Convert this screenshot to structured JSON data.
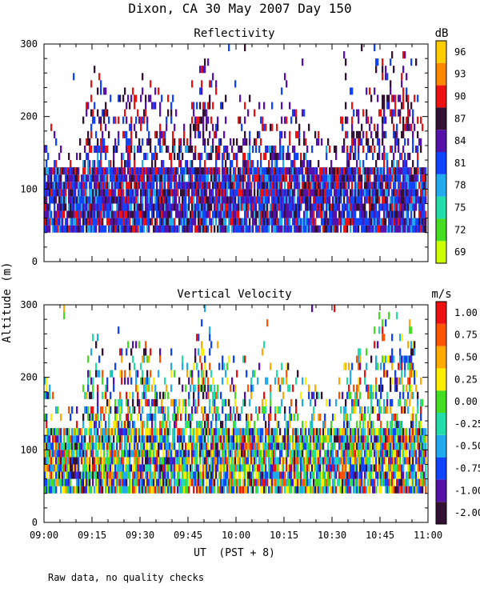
{
  "title": "Dixon, CA 30 May 2007  Day 150",
  "footer_note": "Raw data, no quality checks",
  "colors": {
    "reflectivity_scale": [
      "#ccff00",
      "#44dd22",
      "#22ddaa",
      "#22aaee",
      "#1144ff",
      "#5511aa",
      "#331133",
      "#ee1111",
      "#ff8800",
      "#ffcc00"
    ],
    "velocity_scale": [
      "#331133",
      "#5511aa",
      "#1144ff",
      "#22aaee",
      "#22ddaa",
      "#44dd22",
      "#ffee00",
      "#ffaa00",
      "#ff5500",
      "#ee1111"
    ]
  },
  "chart_data": [
    {
      "type": "heatmap",
      "title": "Reflectivity",
      "xlabel": "UT  (PST + 8)",
      "ylabel": "Altitude (m)",
      "xlim": [
        0,
        120
      ],
      "ylim": [
        0,
        300
      ],
      "x_ticks": [
        "09:00",
        "09:15",
        "09:30",
        "09:45",
        "10:00",
        "10:15",
        "10:30",
        "10:45",
        "11:00"
      ],
      "y_ticks": [
        0,
        100,
        200,
        300
      ],
      "colorbar": {
        "unit": "dB",
        "labels": [
          "69",
          "72",
          "75",
          "78",
          "81",
          "84",
          "87",
          "90",
          "93",
          "96"
        ]
      },
      "data_extent": {
        "min_altitude": 40,
        "max_altitude": 300
      },
      "echo_top_profile": {
        "minutes": [
          0,
          5,
          10,
          15,
          20,
          25,
          30,
          35,
          40,
          45,
          50,
          55,
          60,
          65,
          70,
          75,
          80,
          85,
          90,
          95,
          100,
          105,
          110,
          115,
          120
        ],
        "top_altitude_m": [
          210,
          160,
          160,
          280,
          220,
          240,
          260,
          240,
          230,
          220,
          290,
          230,
          230,
          220,
          210,
          220,
          210,
          180,
          160,
          240,
          230,
          290,
          290,
          280,
          120
        ]
      }
    },
    {
      "type": "heatmap",
      "title": "Vertical Velocity",
      "xlabel": "UT  (PST + 8)",
      "ylabel": "Altitude (m)",
      "xlim": [
        0,
        120
      ],
      "ylim": [
        0,
        300
      ],
      "x_ticks": [
        "09:00",
        "09:15",
        "09:30",
        "09:45",
        "10:00",
        "10:15",
        "10:30",
        "10:45",
        "11:00"
      ],
      "y_ticks": [
        0,
        100,
        200,
        300
      ],
      "colorbar": {
        "unit": "m/s",
        "labels": [
          "-2.00",
          "-1.00",
          "-0.75",
          "-0.50",
          "-0.25",
          "0.00",
          "0.25",
          "0.50",
          "0.75",
          "1.00"
        ]
      },
      "data_extent": {
        "min_altitude": 40,
        "max_altitude": 300
      }
    }
  ]
}
